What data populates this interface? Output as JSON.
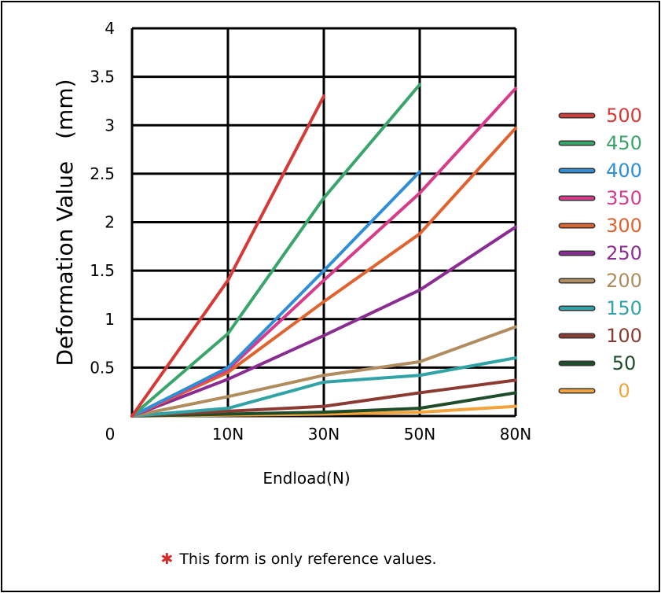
{
  "chart_data": {
    "type": "line",
    "ylabel": "Deformation Value　(mm)",
    "xlabel": "Endload(N)",
    "categories": [
      "0",
      "10N",
      "30N",
      "50N",
      "80N"
    ],
    "y_ticks": [
      "0",
      "0.5",
      "1",
      "1.5",
      "2",
      "2.5",
      "3",
      "3.5",
      "4"
    ],
    "ylim": [
      0,
      4
    ],
    "grid": true,
    "legend_position": "right",
    "series": [
      {
        "name": "500",
        "color": "#d63a36",
        "values": [
          0,
          1.4,
          3.3,
          null,
          null
        ]
      },
      {
        "name": "450",
        "color": "#3aa56a",
        "values": [
          0,
          0.85,
          2.25,
          3.42,
          null
        ]
      },
      {
        "name": "400",
        "color": "#2f8fd6",
        "values": [
          0,
          0.5,
          1.5,
          2.52,
          null
        ]
      },
      {
        "name": "350",
        "color": "#d63c8c",
        "values": [
          0,
          0.48,
          1.4,
          2.3,
          3.38
        ]
      },
      {
        "name": "300",
        "color": "#e0622e",
        "values": [
          0,
          0.45,
          1.18,
          1.88,
          2.97
        ]
      },
      {
        "name": "250",
        "color": "#8a2c91",
        "values": [
          0,
          0.38,
          0.83,
          1.3,
          1.95
        ]
      },
      {
        "name": "200",
        "color": "#b08c5e",
        "values": [
          0,
          0.2,
          0.42,
          0.56,
          0.92
        ]
      },
      {
        "name": "150",
        "color": "#2fa3a6",
        "values": [
          0,
          0.08,
          0.35,
          0.42,
          0.6
        ]
      },
      {
        "name": "100",
        "color": "#8c3b32",
        "values": [
          0,
          0.05,
          0.1,
          0.24,
          0.37
        ]
      },
      {
        "name": "50",
        "color": "#1f4d2a",
        "values": [
          0,
          0.02,
          0.04,
          0.08,
          0.24
        ]
      },
      {
        "name": "0",
        "color": "#f2a33a",
        "values": [
          0,
          0.01,
          0.02,
          0.04,
          0.1
        ]
      }
    ]
  },
  "note": {
    "star": "✱",
    "text": "This form is only reference values."
  }
}
